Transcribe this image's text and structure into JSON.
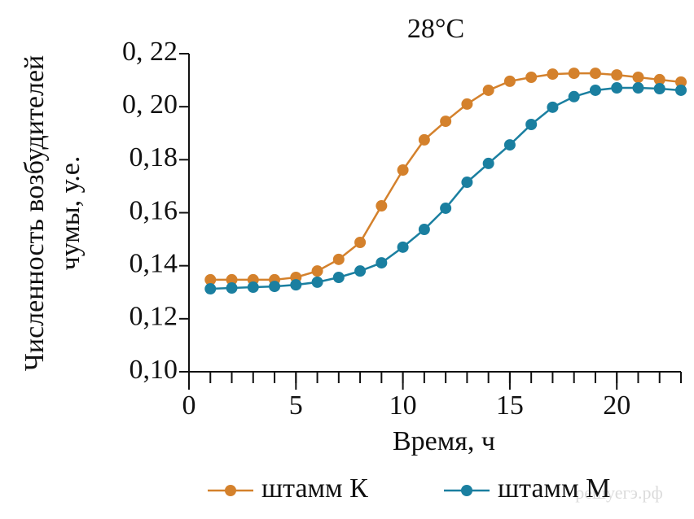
{
  "chart_data": {
    "type": "line",
    "title": "28°C",
    "x_label": "Время, ч",
    "y_label": [
      "Численность возбудителей",
      "чумы, у.е."
    ],
    "x": [
      1,
      2,
      3,
      4,
      5,
      6,
      7,
      8,
      9,
      10,
      11,
      12,
      13,
      14,
      15,
      16,
      17,
      18,
      19,
      20,
      21,
      22,
      23
    ],
    "series": [
      {
        "name": "штамм К",
        "color": "#d4812c",
        "values": [
          0.1347,
          0.1347,
          0.1347,
          0.1347,
          0.1356,
          0.138,
          0.1424,
          0.1488,
          0.1626,
          0.1761,
          0.1875,
          0.1945,
          0.201,
          0.2062,
          0.2096,
          0.2111,
          0.2123,
          0.2126,
          0.2126,
          0.212,
          0.2111,
          0.2102,
          0.2093
        ]
      },
      {
        "name": "штамм М",
        "color": "#1a7fa0",
        "values": [
          0.1313,
          0.1316,
          0.1319,
          0.1322,
          0.1328,
          0.1338,
          0.1356,
          0.138,
          0.1411,
          0.147,
          0.1537,
          0.1617,
          0.1715,
          0.1786,
          0.1856,
          0.1933,
          0.1998,
          0.2038,
          0.2062,
          0.2071,
          0.2071,
          0.2068,
          0.2062
        ]
      }
    ],
    "xlim": [
      0,
      23
    ],
    "xticks": [
      0,
      5,
      10,
      15,
      20
    ],
    "ylim": [
      0.1,
      0.22
    ],
    "yticks": [
      {
        "value": 0.1,
        "label": "0,10"
      },
      {
        "value": 0.12,
        "label": "0,12"
      },
      {
        "value": 0.14,
        "label": "0,14"
      },
      {
        "value": 0.16,
        "label": "0,16"
      },
      {
        "value": 0.18,
        "label": "0,18"
      },
      {
        "value": 0.2,
        "label": "0, 20"
      },
      {
        "value": 0.22,
        "label": "0, 22"
      }
    ],
    "watermark": "решуегэ.рф"
  }
}
